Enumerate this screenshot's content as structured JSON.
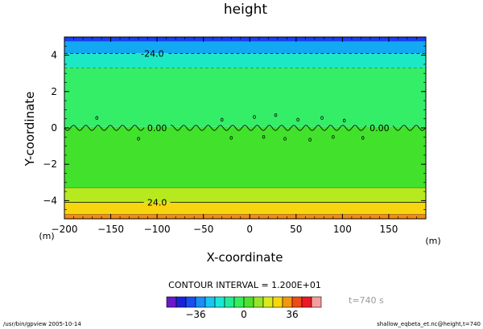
{
  "chart_data": {
    "type": "heatmap",
    "title": "height",
    "xlabel": "X-coordinate",
    "ylabel": "Y-coordinate",
    "x_unit": "(m)",
    "y_unit": "(m)",
    "xlim": [
      -200,
      190
    ],
    "ylim": [
      -5,
      5
    ],
    "x_ticks": [
      -200,
      -150,
      -100,
      -50,
      0,
      50,
      100,
      150
    ],
    "y_ticks": [
      -4,
      -2,
      0,
      2,
      4
    ],
    "contour_interval_text": "CONTOUR INTERVAL = 1.200E+01",
    "time_text": "t=740 s",
    "bands": [
      {
        "y0": 4.75,
        "y1": 5.0,
        "color": "#1a3ef0"
      },
      {
        "y0": 4.1,
        "y1": 4.75,
        "color": "#13a8f2"
      },
      {
        "y0": 3.3,
        "y1": 4.1,
        "color": "#1de8c6"
      },
      {
        "y0": 0.05,
        "y1": 3.3,
        "color": "#34ee68"
      },
      {
        "y0": -3.3,
        "y1": 0.05,
        "color": "#42e12c"
      },
      {
        "y0": -4.1,
        "y1": -3.3,
        "color": "#b6ea1e"
      },
      {
        "y0": -4.75,
        "y1": -4.1,
        "color": "#f8d60f"
      },
      {
        "y0": -5.0,
        "y1": -4.75,
        "color": "#f48a10"
      }
    ],
    "contour_lines": [
      {
        "y": 4.1,
        "label": "-24.0",
        "label_x": -105
      },
      {
        "y": 3.3,
        "label": "",
        "label_x": 0
      },
      {
        "y": -3.3,
        "label": "",
        "label_x": 0
      },
      {
        "y": -4.1,
        "label": "24.0",
        "label_x": -100
      },
      {
        "y": -4.75,
        "label": "",
        "label_x": 0
      }
    ],
    "zero_contour": {
      "y": 0.0,
      "labels": [
        {
          "text": "0.00",
          "x": -100
        },
        {
          "text": "0.00",
          "x": 140
        }
      ]
    },
    "colorbar": {
      "colors": [
        "#6a18c8",
        "#1a22d8",
        "#1a4ef0",
        "#1a8ef4",
        "#16c6f4",
        "#1ae8d6",
        "#20ec96",
        "#36ee5a",
        "#4ee12e",
        "#98e428",
        "#d8ec1c",
        "#f8d60c",
        "#f49610",
        "#f04a16",
        "#ec1a24",
        "#f49ea0"
      ],
      "labels": [
        {
          "text": "-36",
          "pos": 3
        },
        {
          "text": "0",
          "pos": 8
        },
        {
          "text": "36",
          "pos": 13
        }
      ]
    }
  },
  "footer": {
    "left": "/usr/bin/gpview  2005-10-14",
    "right": "shallow_eqbeta_et.nc@height,t=740"
  }
}
